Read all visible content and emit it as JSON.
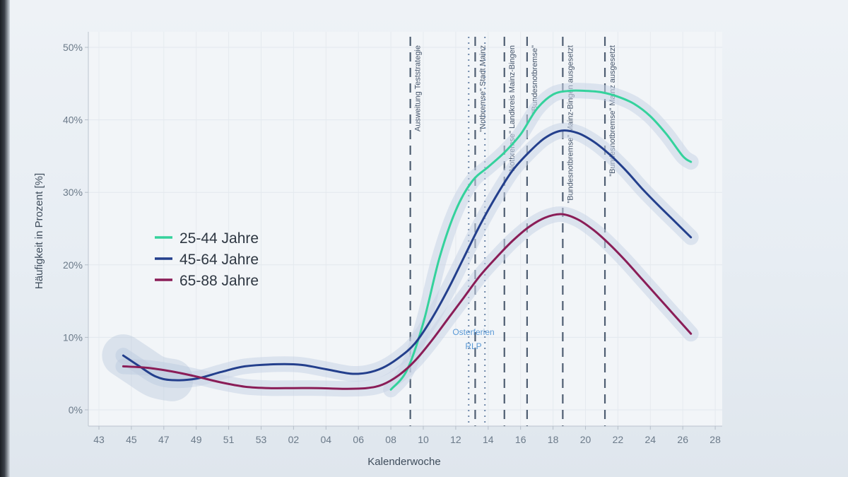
{
  "chart_data": {
    "type": "line",
    "xlabel": "Kalenderwoche",
    "ylabel": "Häufigkeit in Prozent [%]",
    "y_ticks": [
      {
        "value": 0,
        "label": "0%"
      },
      {
        "value": 10,
        "label": "10%"
      },
      {
        "value": 20,
        "label": "20%"
      },
      {
        "value": 30,
        "label": "30%"
      },
      {
        "value": 40,
        "label": "40%"
      },
      {
        "value": 50,
        "label": "50%"
      }
    ],
    "ylim": [
      0,
      50
    ],
    "x_ticks": [
      {
        "label": "43",
        "index": 0
      },
      {
        "label": "45",
        "index": 2
      },
      {
        "label": "47",
        "index": 4
      },
      {
        "label": "49",
        "index": 6
      },
      {
        "label": "51",
        "index": 8
      },
      {
        "label": "53",
        "index": 10
      },
      {
        "label": "02",
        "index": 12
      },
      {
        "label": "04",
        "index": 14
      },
      {
        "label": "06",
        "index": 16
      },
      {
        "label": "08",
        "index": 18
      },
      {
        "label": "10",
        "index": 20
      },
      {
        "label": "12",
        "index": 22
      },
      {
        "label": "14",
        "index": 24
      },
      {
        "label": "16",
        "index": 26
      },
      {
        "label": "18",
        "index": 28
      },
      {
        "label": "20",
        "index": 30
      },
      {
        "label": "22",
        "index": 32
      },
      {
        "label": "24",
        "index": 34
      },
      {
        "label": "26",
        "index": 36
      },
      {
        "label": "28",
        "index": 38
      }
    ],
    "xlim": [
      -0.4,
      38.2
    ],
    "series": [
      {
        "name": "25-44 Jahre",
        "color": "#34d29c",
        "points": [
          [
            18,
            2.8
          ],
          [
            19,
            5.5
          ],
          [
            20,
            12
          ],
          [
            21,
            21
          ],
          [
            22,
            27.5
          ],
          [
            23,
            31.5
          ],
          [
            24,
            33.5
          ],
          [
            25,
            35.5
          ],
          [
            26,
            38
          ],
          [
            27,
            41.5
          ],
          [
            28,
            43.5
          ],
          [
            29,
            44
          ],
          [
            30,
            44
          ],
          [
            31,
            43.8
          ],
          [
            32,
            43.2
          ],
          [
            33,
            42.2
          ],
          [
            34,
            40.5
          ],
          [
            35,
            38
          ],
          [
            36,
            35
          ],
          [
            36.5,
            34.2
          ]
        ]
      },
      {
        "name": "45-64 Jahre",
        "color": "#233f8c",
        "points": [
          [
            1.5,
            7.5
          ],
          [
            2.5,
            6
          ],
          [
            3.5,
            4.6
          ],
          [
            4.5,
            4.1
          ],
          [
            6,
            4.3
          ],
          [
            7.5,
            5.2
          ],
          [
            9,
            6
          ],
          [
            11,
            6.3
          ],
          [
            12.5,
            6.2
          ],
          [
            14,
            5.6
          ],
          [
            15.5,
            5
          ],
          [
            16.5,
            5.1
          ],
          [
            17.5,
            5.8
          ],
          [
            18.5,
            7.2
          ],
          [
            19.5,
            9.2
          ],
          [
            20.5,
            12.5
          ],
          [
            21.5,
            16.5
          ],
          [
            22.5,
            21
          ],
          [
            23.5,
            25.5
          ],
          [
            24.5,
            29.5
          ],
          [
            25.5,
            33
          ],
          [
            26.5,
            35.5
          ],
          [
            27.5,
            37.5
          ],
          [
            28.5,
            38.5
          ],
          [
            29.5,
            38.2
          ],
          [
            30.5,
            37
          ],
          [
            31.5,
            35.2
          ],
          [
            32.5,
            33
          ],
          [
            33.5,
            30.5
          ],
          [
            34.5,
            28.2
          ],
          [
            35.5,
            26
          ],
          [
            36.5,
            23.8
          ]
        ]
      },
      {
        "name": "65-88 Jahre",
        "color": "#8a1d57",
        "points": [
          [
            1.5,
            6
          ],
          [
            3,
            5.8
          ],
          [
            4.5,
            5.3
          ],
          [
            6,
            4.6
          ],
          [
            7.5,
            3.8
          ],
          [
            9,
            3.2
          ],
          [
            10.5,
            3
          ],
          [
            12,
            3
          ],
          [
            13.5,
            3
          ],
          [
            15,
            2.9
          ],
          [
            16.5,
            3
          ],
          [
            17.5,
            3.5
          ],
          [
            18.5,
            4.8
          ],
          [
            19.5,
            6.8
          ],
          [
            20.5,
            9.5
          ],
          [
            21.5,
            12.5
          ],
          [
            22.5,
            15.5
          ],
          [
            23.5,
            18.5
          ],
          [
            24.5,
            21
          ],
          [
            25.5,
            23.3
          ],
          [
            26.5,
            25.2
          ],
          [
            27.5,
            26.5
          ],
          [
            28.5,
            27
          ],
          [
            29.5,
            26.3
          ],
          [
            30.5,
            24.8
          ],
          [
            31.5,
            22.8
          ],
          [
            32.5,
            20.5
          ],
          [
            33.5,
            18
          ],
          [
            34.5,
            15.5
          ],
          [
            35.5,
            13
          ],
          [
            36.5,
            10.5
          ]
        ]
      }
    ],
    "event_lines": [
      {
        "x": 19.2,
        "style": "dashed",
        "label": "Ausweitung Teststrategie"
      },
      {
        "x": 22.8,
        "style": "dotted",
        "label": ""
      },
      {
        "x": 23.2,
        "style": "dashed",
        "label": "\"Notbremse\" Stadt Mainz"
      },
      {
        "x": 23.8,
        "style": "dotted",
        "label": ""
      },
      {
        "x": 25.0,
        "style": "dashed",
        "label": "\"Notbremse\" Landkreis Mainz-Bingen"
      },
      {
        "x": 26.4,
        "style": "dashed",
        "label": "\"Bundesnotbremse\""
      },
      {
        "x": 28.6,
        "style": "dashed",
        "label": "\"Bundesnotbremse\" Mainz-Bingen ausgesetzt"
      },
      {
        "x": 31.2,
        "style": "dashed",
        "label": "\"Bundesnotbremse\" Mainz ausgesetzt"
      }
    ],
    "holiday_label": [
      "Osterferien",
      "RLP"
    ],
    "grid": true,
    "legend_position": "left-middle"
  }
}
